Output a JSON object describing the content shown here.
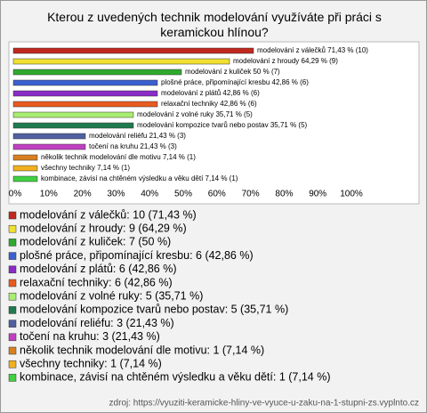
{
  "chart_data": {
    "type": "hbar",
    "title": "Kterou z uvedených technik modelování využíváte při práci s keramickou hlínou?",
    "categories": [
      "modelování z válečků",
      "modelování z hroudy",
      "modelování z kuliček",
      "plošné práce, připomínající kresbu",
      "modelování z plátů",
      "relaxační techniky",
      "modelování z volné ruky",
      "modelování kompozice tvarů nebo postav",
      "modelování reliéfu",
      "točení na kruhu",
      "několik technik modelování dle motivu",
      "všechny techniky",
      "kombinace, závisí na chtěném výsledku a věku dětí"
    ],
    "values": [
      71.43,
      64.29,
      50,
      42.86,
      42.86,
      42.86,
      35.71,
      35.71,
      21.43,
      21.43,
      7.14,
      7.14,
      7.14
    ],
    "value_labels": [
      "modelování z válečků 71,43 % (10)",
      "modelování z hroudy 64,29 % (9)",
      "modelování z kuliček 50 % (7)",
      "plošné práce, připomínající kresbu 42,86 % (6)",
      "modelování z plátů 42,86 % (6)",
      "relaxační techniky 42,86 % (6)",
      "modelování z volné ruky 35,71 % (5)",
      "modelování kompozice tvarů nebo postav 35,71 % (5)",
      "modelování reliéfu 21,43 % (3)",
      "točení na kruhu 21,43 % (3)",
      "několik technik modelování dle motivu 7,14 % (1)",
      "všechny techniky 7,14 % (1)",
      "kombinace, závisí na chtěném výsledku a věku dětí 7,14 % (1)"
    ],
    "legend_labels": [
      "modelování z válečků: 10 (71,43 %)",
      "modelování z hroudy: 9 (64,29 %)",
      "modelování z kuliček: 7 (50 %)",
      "plošné práce, připomínající kresbu: 6 (42,86 %)",
      "modelování z plátů: 6 (42,86 %)",
      "relaxační techniky: 6 (42,86 %)",
      "modelování z volné ruky: 5 (35,71 %)",
      "modelování kompozice tvarů nebo postav: 5 (35,71 %)",
      "modelování reliéfu: 3 (21,43 %)",
      "točení na kruhu: 3 (21,43 %)",
      "několik technik modelování dle motivu: 1 (7,14 %)",
      "všechny techniky: 1 (7,14 %)",
      "kombinace, závisí na chtěném výsledku a věku dětí: 1 (7,14 %)"
    ],
    "colors": [
      "#c0281e",
      "#f0e030",
      "#2eaa2e",
      "#3a5fd0",
      "#8a2bc8",
      "#e85a1e",
      "#a8ee70",
      "#1e7a50",
      "#5060a0",
      "#c040c0",
      "#d88020",
      "#f0b020",
      "#40d040"
    ],
    "xlim": [
      0,
      100
    ],
    "xticks": [
      {
        "value": 0,
        "label": "0%"
      },
      {
        "value": 10,
        "label": "10%"
      },
      {
        "value": 20,
        "label": "20%"
      },
      {
        "value": 30,
        "label": "30%"
      },
      {
        "value": 40,
        "label": "40%"
      },
      {
        "value": 50,
        "label": "50%"
      },
      {
        "value": 60,
        "label": "60%"
      },
      {
        "value": 70,
        "label": "70%"
      },
      {
        "value": 80,
        "label": "80%"
      },
      {
        "value": 90,
        "label": "90%"
      },
      {
        "value": 100,
        "label": "100%"
      }
    ],
    "grid": false,
    "source": "zdroj: https://vyuziti-keramicke-hliny-ve-vyuce-u-zaku-na-1-stupni-zs.vyplnto.cz"
  }
}
